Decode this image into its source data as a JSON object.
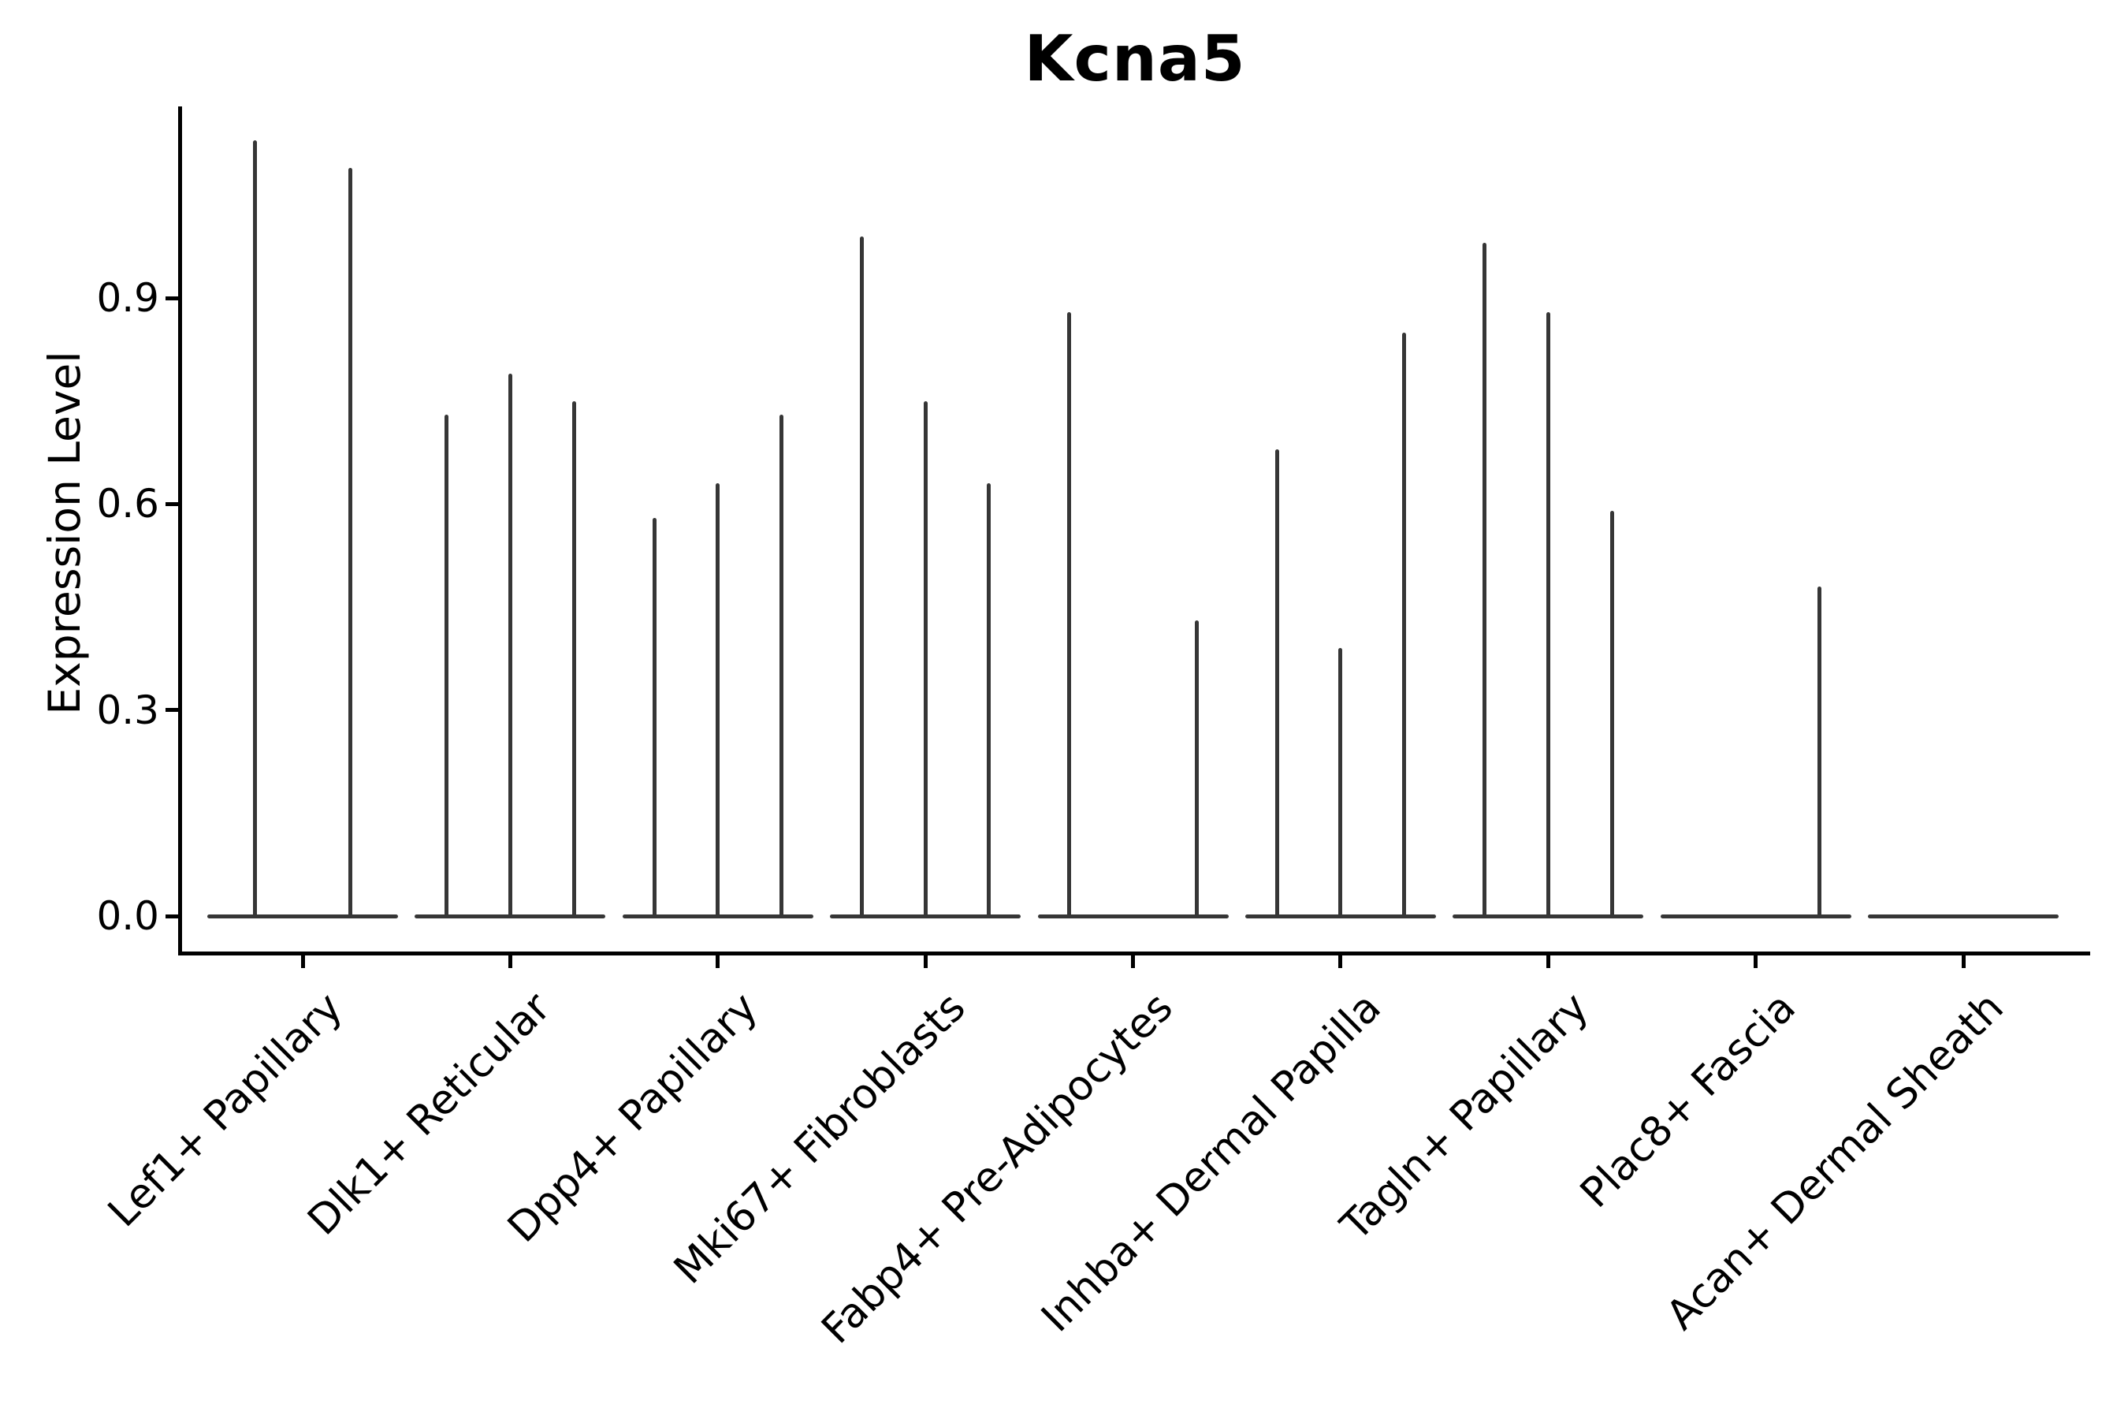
{
  "title": "Kcna5",
  "axes": {
    "ylabel": "Expression Level",
    "ytick_labels": [
      "0.0",
      "0.3",
      "0.6",
      "0.9"
    ]
  },
  "chart_data": {
    "type": "violin",
    "title": "Kcna5",
    "xlabel": "",
    "ylabel": "Expression Level",
    "ylim": [
      -0.06,
      1.18
    ],
    "yticks": [
      0.0,
      0.3,
      0.6,
      0.9
    ],
    "grid": false,
    "legend": "none",
    "violin_style": "narrow spike violins (most mass at 0, thin tail to max)",
    "categories": [
      "Lef1+ Papillary",
      "Dlk1+ Reticular",
      "Dpp4+ Papillary",
      "Mki67+ Fibroblasts",
      "Fabp4+ Pre-Adipocytes",
      "Inhba+ Dermal Papilla",
      "Tagln+ Papillary",
      "Plac8+ Fascia",
      "Acan+ Dermal Sheath"
    ],
    "groups": [
      {
        "label": "Lef1+ Papillary",
        "n_violins": 2,
        "violin_max": [
          1.13,
          1.09
        ]
      },
      {
        "label": "Dlk1+ Reticular",
        "n_violins": 3,
        "violin_max": [
          0.73,
          0.79,
          0.75
        ]
      },
      {
        "label": "Dpp4+ Papillary",
        "n_violins": 3,
        "violin_max": [
          0.58,
          0.63,
          0.73
        ]
      },
      {
        "label": "Mki67+ Fibroblasts",
        "n_violins": 3,
        "violin_max": [
          0.99,
          0.75,
          0.63
        ]
      },
      {
        "label": "Fabp4+ Pre-Adipocytes",
        "n_violins": 3,
        "violin_max": [
          0.88,
          0,
          0.43
        ]
      },
      {
        "label": "Inhba+ Dermal Papilla",
        "n_violins": 3,
        "violin_max": [
          0.68,
          0.39,
          0.85
        ]
      },
      {
        "label": "Tagln+ Papillary",
        "n_violins": 3,
        "violin_max": [
          0.98,
          0.88,
          0.59
        ]
      },
      {
        "label": "Plac8+ Fascia",
        "n_violins": 3,
        "violin_max": [
          0,
          0,
          0.48
        ]
      },
      {
        "label": "Acan+ Dermal Sheath",
        "n_violins": 3,
        "violin_max": [
          0,
          0,
          0
        ]
      }
    ],
    "colors": {
      "violin": "#363636",
      "axis": "#000000",
      "background": "#ffffff"
    }
  }
}
